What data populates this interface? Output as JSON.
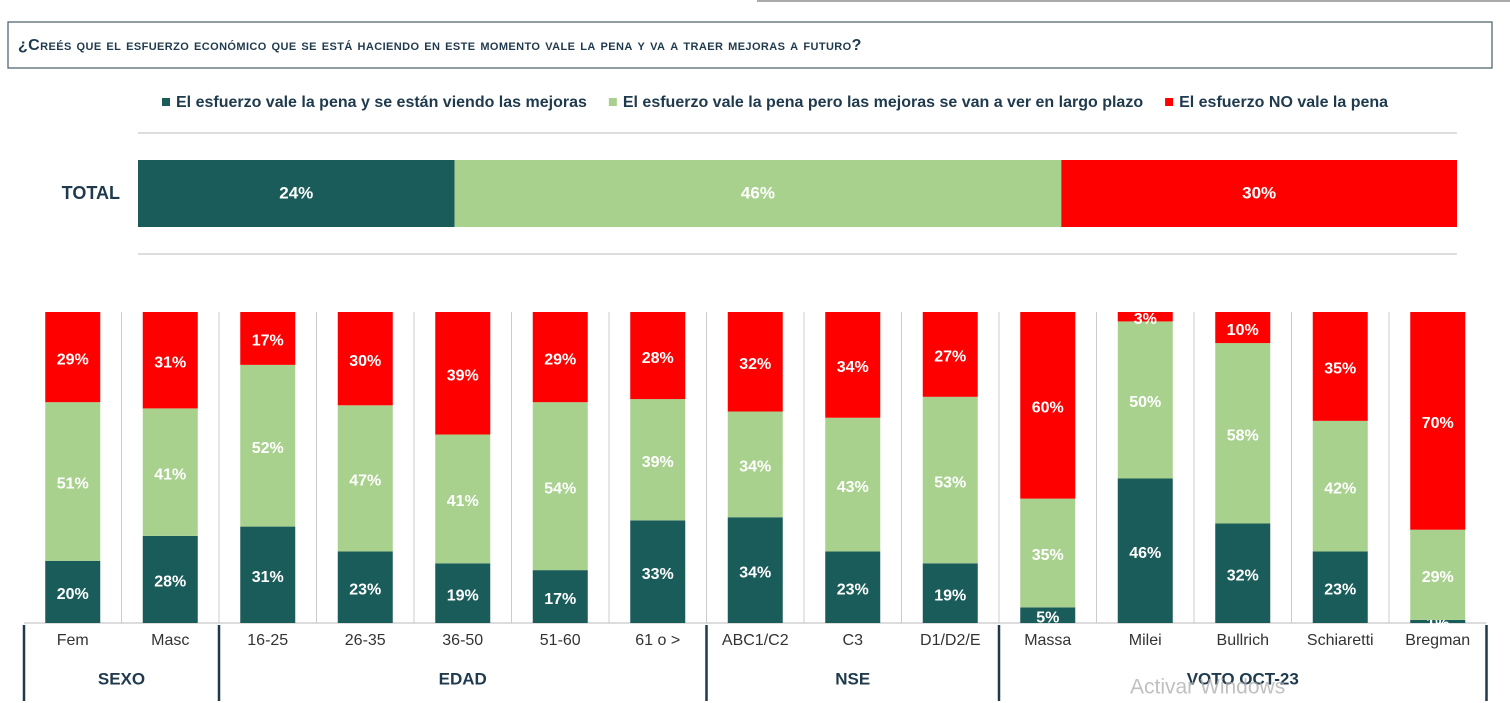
{
  "chart_data": {
    "type": "stacked_bar",
    "title": "¿Creés que el esfuerzo económico que se está haciendo en este momento vale la pena y va a traer mejoras a futuro?",
    "total": {
      "label": "TOTAL",
      "values": [
        24,
        46,
        30
      ],
      "value_labels": [
        "24%",
        "46%",
        "30%"
      ]
    },
    "categories": [
      "Fem",
      "Masc",
      "16-25",
      "26-35",
      "36-50",
      "51-60",
      "61 o >",
      "ABC1/C2",
      "C3",
      "D1/D2/E",
      "Massa",
      "Milei",
      "Bullrich",
      "Schiaretti",
      "Bregman"
    ],
    "groups": [
      "SEXO",
      "SEXO",
      "EDAD",
      "EDAD",
      "EDAD",
      "EDAD",
      "EDAD",
      "NSE",
      "NSE",
      "NSE",
      "VOTO OCT-23",
      "VOTO OCT-23",
      "VOTO OCT-23",
      "VOTO OCT-23",
      "VOTO OCT-23"
    ],
    "series": [
      {
        "name": "El esfuerzo vale la pena y se están viendo las mejoras",
        "color": "#1a5c5a",
        "values": [
          20,
          28,
          31,
          23,
          19,
          17,
          33,
          34,
          23,
          19,
          5,
          46,
          32,
          23,
          1
        ],
        "value_labels": [
          "20%",
          "28%",
          "31%",
          "23%",
          "19%",
          "17%",
          "33%",
          "34%",
          "23%",
          "19%",
          "5%",
          "46%",
          "32%",
          "23%",
          "1%"
        ]
      },
      {
        "name": "El esfuerzo vale la pena pero las mejoras se van a ver en largo plazo",
        "color": "#a9d18e",
        "values": [
          51,
          41,
          52,
          47,
          41,
          54,
          39,
          34,
          43,
          53,
          35,
          50,
          58,
          42,
          29
        ],
        "value_labels": [
          "51%",
          "41%",
          "52%",
          "47%",
          "41%",
          "54%",
          "39%",
          "34%",
          "43%",
          "53%",
          "35%",
          "50%",
          "58%",
          "42%",
          "29%"
        ]
      },
      {
        "name": "El esfuerzo NO vale la pena",
        "color": "#ff0000",
        "values": [
          29,
          31,
          17,
          30,
          39,
          29,
          28,
          32,
          34,
          27,
          60,
          3,
          10,
          35,
          70
        ],
        "value_labels": [
          "29%",
          "31%",
          "17%",
          "30%",
          "39%",
          "29%",
          "28%",
          "32%",
          "34%",
          "27%",
          "60%",
          "3%",
          "10%",
          "35%",
          "70%"
        ]
      }
    ],
    "watermark": "Activar Windows"
  }
}
